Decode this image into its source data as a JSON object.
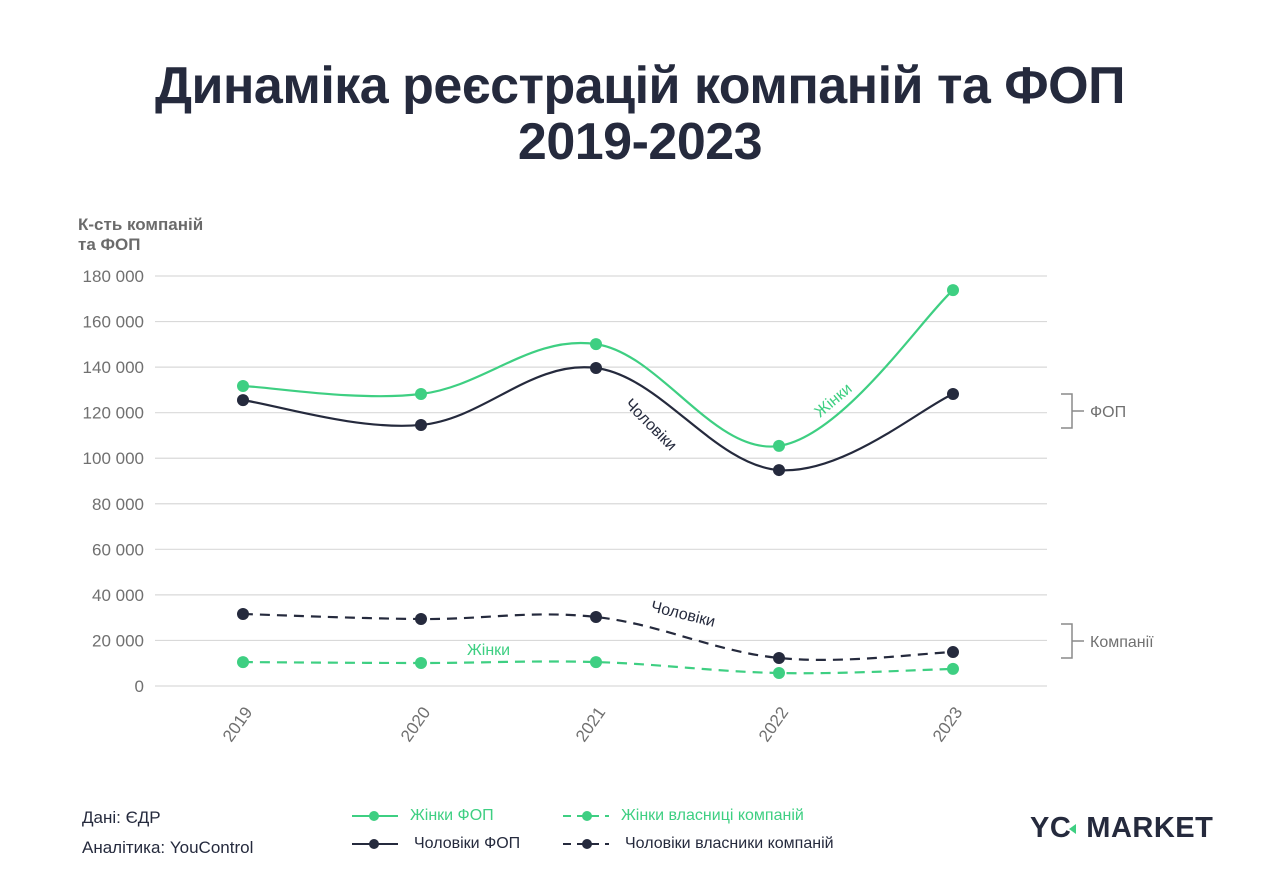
{
  "title_line1": "Динаміка реєстрацій компаній та ФОП",
  "title_line2": "2019-2023",
  "y_axis_label_line1": "К-сть компаній",
  "y_axis_label_line2": "та ФОП",
  "footer": {
    "source": "Дані: ЄДР",
    "analytics": "Аналітика: YouControl"
  },
  "legend": {
    "women_fop": "Жінки ФОП",
    "men_fop": "Чоловіки ФОП",
    "women_companies": "Жінки власниці компаній",
    "men_companies": "Чоловіки власники компаній"
  },
  "group_labels": {
    "fop": "ФОП",
    "companies": "Компанії"
  },
  "annotations": {
    "fop_women": "Жінки",
    "fop_men": "Чоловіки",
    "comp_women": "Жінки",
    "comp_men": "Чоловіки"
  },
  "logo": {
    "left": "YC",
    "right": "MARKET"
  },
  "colors": {
    "green": "#3ecf82",
    "dark": "#252a3d",
    "grid": "#d9d9d9",
    "tick": "#707070"
  },
  "chart_data": {
    "type": "line",
    "title": "Динаміка реєстрацій компаній та ФОП 2019-2023",
    "xlabel": "",
    "ylabel": "К-сть компаній та ФОП",
    "categories": [
      "2019",
      "2020",
      "2021",
      "2022",
      "2023"
    ],
    "y_ticks": [
      0,
      20000,
      40000,
      60000,
      80000,
      100000,
      120000,
      140000,
      160000,
      180000
    ],
    "y_tick_labels": [
      "0",
      "20 000",
      "40 000",
      "60 000",
      "80 000",
      "100 000",
      "120 000",
      "140 000",
      "160 000",
      "180 000"
    ],
    "ylim": [
      0,
      180000
    ],
    "grid": true,
    "legend_position": "bottom",
    "series": [
      {
        "name": "Жінки ФОП",
        "color": "#3ecf82",
        "style": "solid",
        "values": [
          131700,
          128200,
          150100,
          105400,
          173800
        ]
      },
      {
        "name": "Чоловіки ФОП",
        "color": "#252a3d",
        "style": "solid",
        "values": [
          125500,
          114600,
          139600,
          94800,
          128200
        ]
      },
      {
        "name": "Жінки власниці компаній",
        "color": "#3ecf82",
        "style": "dashed",
        "values": [
          10500,
          10100,
          10500,
          5700,
          7500
        ]
      },
      {
        "name": "Чоловіки власники компаній",
        "color": "#252a3d",
        "style": "dashed",
        "values": [
          31600,
          29400,
          30300,
          12300,
          14900
        ]
      }
    ]
  }
}
